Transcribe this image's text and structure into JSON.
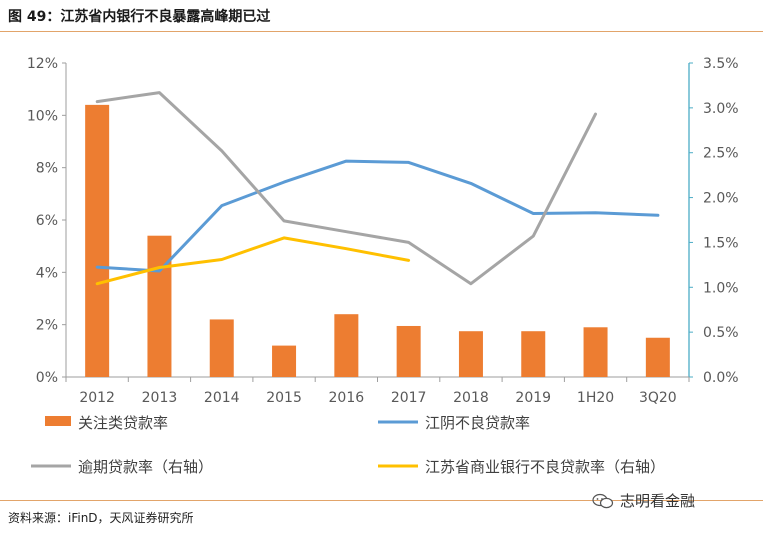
{
  "header": {
    "title": "图 49：江苏省内银行不良暴露高峰期已过"
  },
  "footer": {
    "source": "资料来源：iFinD，天风证券研究所",
    "watermark": "志明看金融",
    "watermark_icon": "wechat-icon"
  },
  "chart_data": {
    "type": "bar",
    "categories": [
      "2012",
      "2013",
      "2014",
      "2015",
      "2016",
      "2017",
      "2018",
      "2019",
      "1H20",
      "3Q20"
    ],
    "y_left": {
      "ticks": [
        "0%",
        "2%",
        "4%",
        "6%",
        "8%",
        "10%",
        "12%"
      ],
      "ylim": [
        0,
        12
      ]
    },
    "y_right": {
      "ticks": [
        "0.0%",
        "0.5%",
        "1.0%",
        "1.5%",
        "2.0%",
        "2.5%",
        "3.0%",
        "3.5%"
      ],
      "ylim": [
        0,
        3.5
      ]
    },
    "grid": false,
    "legend_position": "bottom",
    "series": [
      {
        "name": "关注类贷款率",
        "type": "bar",
        "axis": "left",
        "color": "#ed7d31",
        "values": [
          10.4,
          5.4,
          2.2,
          1.2,
          2.4,
          1.95,
          1.75,
          1.75,
          1.9,
          1.5
        ]
      },
      {
        "name": "江阴不良贷款率",
        "type": "line",
        "axis": "left",
        "color": "#5b9bd5",
        "values": [
          4.2,
          4.05,
          6.55,
          7.45,
          8.25,
          8.2,
          7.4,
          6.25,
          6.28,
          6.18
        ]
      },
      {
        "name": "逾期贷款率（右轴）",
        "type": "line",
        "axis": "right",
        "color": "#a5a5a5",
        "values": [
          3.07,
          3.17,
          2.52,
          1.74,
          1.62,
          1.5,
          1.04,
          1.57,
          2.93,
          null
        ]
      },
      {
        "name": "江苏省商业银行不良贷款率（右轴）",
        "type": "line",
        "axis": "right",
        "color": "#ffc000",
        "values": [
          1.04,
          1.22,
          1.31,
          1.55,
          1.43,
          1.3,
          null,
          null,
          null,
          null
        ]
      }
    ]
  }
}
